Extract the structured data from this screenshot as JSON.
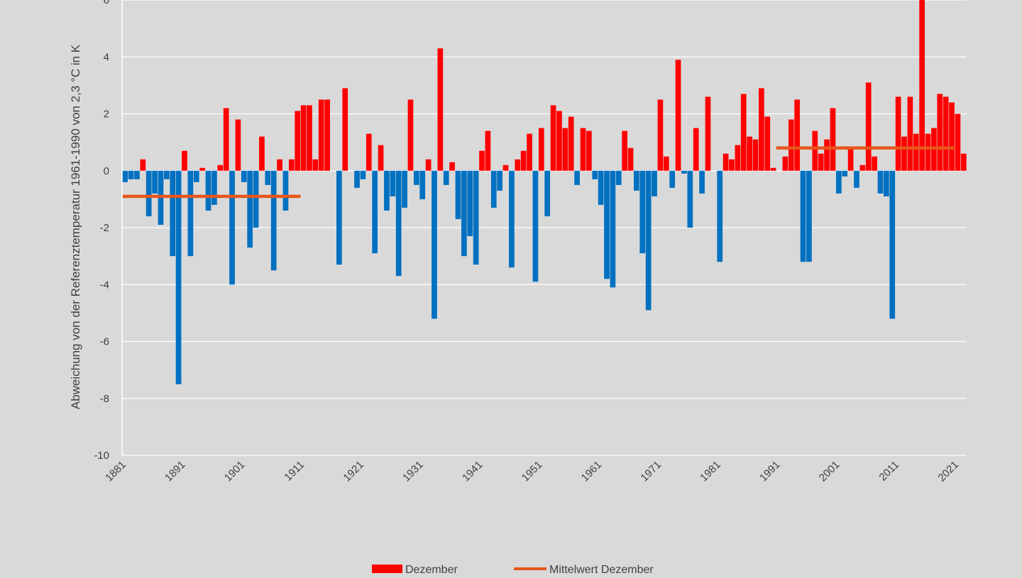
{
  "chart_data": {
    "type": "bar",
    "ylabel": "Abweichung von der Referenztemperatur 1961-1990 von 2,3 °C in K",
    "xlabel": "",
    "ylim": [
      -10,
      6
    ],
    "yticks": [
      -10,
      -8,
      -6,
      -4,
      -2,
      0,
      2,
      4,
      6
    ],
    "x_start": 1881,
    "x_end": 2022,
    "xtick_labels": [
      "1881",
      "1891",
      "1901",
      "1911",
      "1921",
      "1931",
      "1941",
      "1951",
      "1961",
      "1971",
      "1981",
      "1991",
      "2001",
      "2011",
      "2021"
    ],
    "grid": true,
    "legend_position": "bottom",
    "series": [
      {
        "name": "Dezember",
        "colors": {
          "positive": "#ff0000",
          "negative": "#0070c0"
        },
        "years": [
          1881,
          1882,
          1883,
          1884,
          1885,
          1886,
          1887,
          1888,
          1889,
          1890,
          1891,
          1892,
          1893,
          1894,
          1895,
          1896,
          1897,
          1898,
          1899,
          1900,
          1901,
          1902,
          1903,
          1904,
          1905,
          1906,
          1907,
          1908,
          1909,
          1910,
          1911,
          1912,
          1913,
          1914,
          1915,
          1916,
          1917,
          1918,
          1919,
          1920,
          1921,
          1922,
          1923,
          1924,
          1925,
          1926,
          1927,
          1928,
          1929,
          1930,
          1931,
          1932,
          1933,
          1934,
          1935,
          1936,
          1937,
          1938,
          1939,
          1940,
          1941,
          1942,
          1943,
          1944,
          1945,
          1946,
          1947,
          1948,
          1949,
          1950,
          1951,
          1952,
          1953,
          1954,
          1955,
          1956,
          1957,
          1958,
          1959,
          1960,
          1961,
          1962,
          1963,
          1964,
          1965,
          1966,
          1967,
          1968,
          1969,
          1970,
          1971,
          1972,
          1973,
          1974,
          1975,
          1976,
          1977,
          1978,
          1979,
          1980,
          1981,
          1982,
          1983,
          1984,
          1985,
          1986,
          1987,
          1988,
          1989,
          1990,
          1991,
          1992,
          1993,
          1994,
          1995,
          1996,
          1997,
          1998,
          1999,
          2000,
          2001,
          2002,
          2003,
          2004,
          2005,
          2006,
          2007,
          2008,
          2009,
          2010,
          2011,
          2012,
          2013,
          2014,
          2015,
          2016,
          2017,
          2018,
          2019,
          2020,
          2021,
          2022
        ],
        "values": [
          -0.4,
          -0.3,
          -0.3,
          0.4,
          -1.6,
          -0.8,
          -1.9,
          -0.3,
          -3.0,
          -7.5,
          0.7,
          -3.0,
          -0.4,
          0.1,
          -1.4,
          -1.2,
          0.2,
          2.2,
          -4.0,
          1.8,
          -0.4,
          -2.7,
          -2.0,
          1.2,
          -0.5,
          -3.5,
          0.4,
          -1.4,
          0.4,
          2.1,
          2.3,
          2.3,
          0.4,
          2.5,
          2.5,
          0.0,
          -3.3,
          2.9,
          0.0,
          -0.6,
          -0.3,
          1.3,
          -2.9,
          0.9,
          -1.4,
          -0.9,
          -3.7,
          -1.3,
          2.5,
          -0.5,
          -1.0,
          0.4,
          -5.2,
          4.3,
          -0.5,
          0.3,
          -1.7,
          -3.0,
          -2.3,
          -3.3,
          0.7,
          1.4,
          -1.3,
          -0.7,
          0.2,
          -3.4,
          0.4,
          0.7,
          1.3,
          -3.9,
          1.5,
          -1.6,
          2.3,
          2.1,
          1.5,
          1.9,
          -0.5,
          1.5,
          1.4,
          -0.3,
          -1.2,
          -3.8,
          -4.1,
          -0.5,
          1.4,
          0.8,
          -0.7,
          -2.9,
          -4.9,
          -0.9,
          2.5,
          0.5,
          -0.6,
          3.9,
          -0.1,
          -2.0,
          1.5,
          -0.8,
          2.6,
          0.0,
          -3.2,
          0.6,
          0.4,
          0.9,
          2.7,
          1.2,
          1.1,
          2.9,
          1.9,
          0.1,
          0.0,
          0.5,
          1.8,
          2.5,
          -3.2,
          -3.2,
          1.4,
          0.6,
          1.1,
          2.2,
          -0.8,
          -0.2,
          0.8,
          -0.6,
          0.2,
          3.1,
          0.5,
          -0.8,
          -0.9,
          -5.2,
          2.6,
          1.2,
          2.6,
          1.3,
          6.0,
          1.3,
          1.5,
          2.7,
          2.6,
          2.4,
          2.0,
          0.6
        ]
      },
      {
        "name": "Mittelwert Dezember",
        "color": "#e8561c",
        "segments": [
          {
            "from": 1881,
            "to": 1910,
            "value": -0.9
          },
          {
            "from": 1991,
            "to": 2020,
            "value": 0.8
          }
        ]
      }
    ]
  }
}
